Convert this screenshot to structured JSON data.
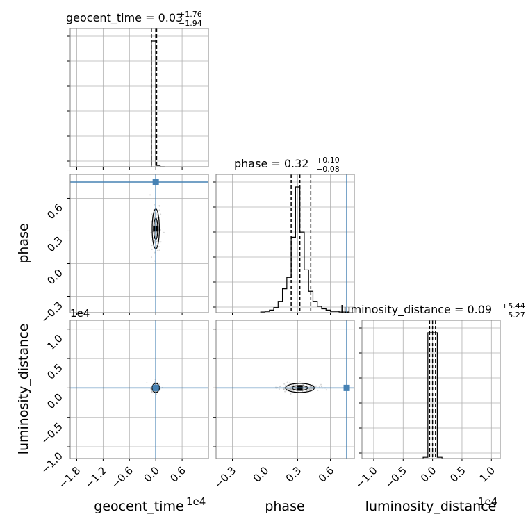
{
  "chart_data": {
    "type": "corner",
    "grid": true,
    "truth_color": "#4682b4",
    "histogram_color": "#000000",
    "scatter_color": "#a9a9a9",
    "parameters": [
      {
        "name": "geocent_time",
        "title": {
          "main": "geocent_time = 0.03",
          "sup": "+1.76",
          "sub": "−1.94"
        },
        "axis_label": "geocent_time",
        "offset_label": "1e4",
        "range": [
          -1.95,
          1.2
        ],
        "ticks": [
          -1.8,
          -1.2,
          -0.6,
          0.0,
          0.6
        ],
        "tick_labels": [
          "−1.8",
          "−1.2",
          "−0.6",
          "0.0",
          "0.6"
        ],
        "quantile_lines": [
          -0.1,
          0.0,
          0.02
        ],
        "truth": 0.0,
        "hist": {
          "edges": [
            -0.1,
            0.0,
            0.1,
            0.2
          ],
          "counts": [
            100,
            1,
            0
          ]
        }
      },
      {
        "name": "phase",
        "title": {
          "main": "phase = 0.32",
          "sup": "+0.10",
          "sub": "−0.08"
        },
        "axis_label": "phase",
        "range": [
          -0.45,
          0.82
        ],
        "ticks": [
          -0.3,
          0.0,
          0.3,
          0.6
        ],
        "tick_labels": [
          "−0.3",
          "0.0",
          "0.3",
          "0.6"
        ],
        "quantile_lines": [
          0.24,
          0.32,
          0.42
        ],
        "truth": 0.75,
        "hist": {
          "edges": [
            -0.04,
            0.0,
            0.04,
            0.08,
            0.12,
            0.16,
            0.2,
            0.24,
            0.28,
            0.32,
            0.36,
            0.4,
            0.44,
            0.48,
            0.52,
            0.56,
            0.6,
            0.64,
            0.68,
            0.72,
            0.76,
            0.8
          ],
          "counts": [
            0.5,
            1,
            2,
            4,
            9,
            19,
            28,
            60,
            100,
            64,
            34,
            17,
            9,
            5,
            3,
            2,
            1,
            1,
            0.5,
            0.5,
            0
          ]
        }
      },
      {
        "name": "luminosity_distance",
        "title": {
          "main": "luminosity_distance = 0.09",
          "sup": "+5.44",
          "sub": "−5.27"
        },
        "axis_label": "luminosity_distance",
        "offset_label": "1e4",
        "range": [
          -1.2,
          1.15
        ],
        "ticks": [
          -1.0,
          -0.5,
          0.0,
          0.5,
          1.0
        ],
        "tick_labels": [
          "−1.0",
          "−0.5",
          "0.0",
          "0.5",
          "1.0"
        ],
        "quantile_lines": [
          -0.05,
          0.0,
          0.05
        ],
        "truth": 0.0,
        "hist": {
          "edges": [
            -0.16,
            -0.08,
            0.0,
            0.08,
            0.16
          ],
          "counts": [
            1,
            100,
            100,
            1
          ]
        }
      }
    ]
  }
}
